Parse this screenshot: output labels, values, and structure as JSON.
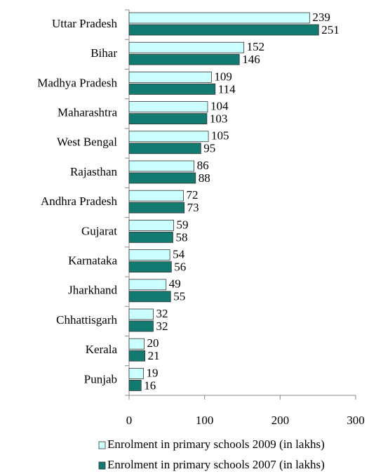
{
  "chart_data": {
    "type": "bar",
    "categories": [
      "Uttar Pradesh",
      "Bihar",
      "Madhya Pradesh",
      "Maharashtra",
      "West Bengal",
      "Rajasthan",
      "Andhra Pradesh",
      "Gujarat",
      "Karnataka",
      "Jharkhand",
      "Chhattisgarh",
      "Kerala",
      "Punjab"
    ],
    "series": [
      {
        "name": "Enrolment in primary schools 2009 (in lakhs)",
        "color": "#ccffff",
        "values": [
          239,
          152,
          109,
          104,
          105,
          86,
          72,
          59,
          54,
          49,
          32,
          20,
          19
        ]
      },
      {
        "name": "Enrolment in primary schools 2007 (in lakhs)",
        "color": "#137a72",
        "values": [
          251,
          146,
          114,
          103,
          95,
          88,
          73,
          58,
          56,
          55,
          32,
          21,
          16
        ]
      }
    ],
    "xlim": [
      0,
      300
    ],
    "xticks": [
      0,
      100,
      200,
      300
    ]
  }
}
